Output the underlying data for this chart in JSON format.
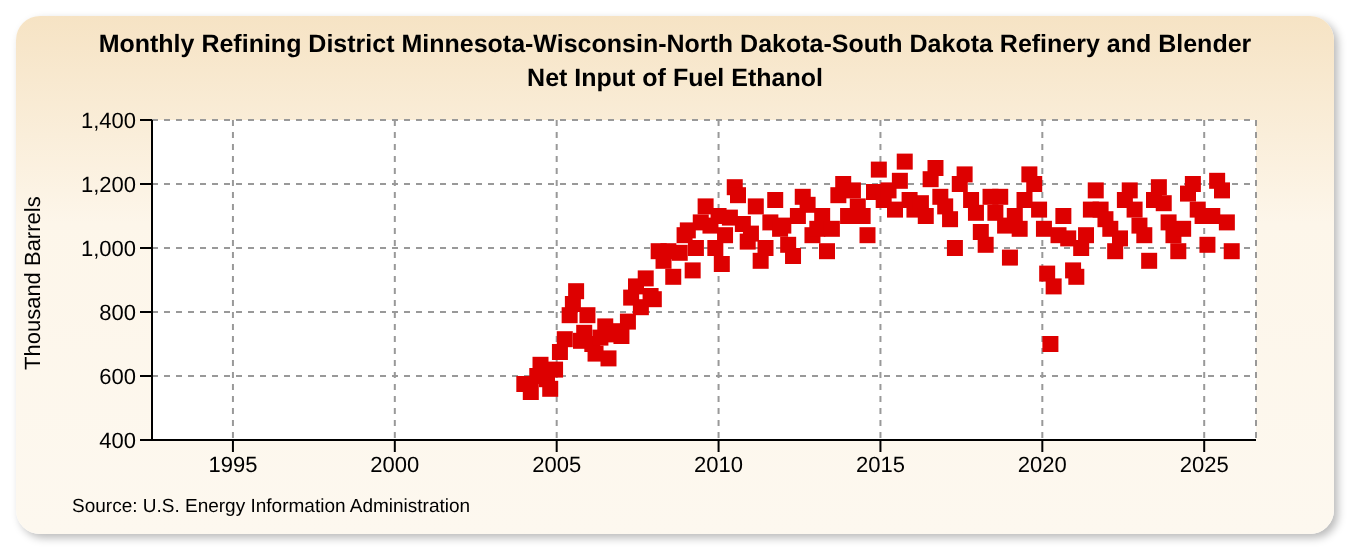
{
  "chart_data": {
    "type": "scatter",
    "title": "Monthly Refining District Minnesota-Wisconsin-North Dakota-South Dakota Refinery and Blender Net Input of Fuel Ethanol",
    "ylabel": "Thousand Barrels",
    "annotations": [
      "Source: U.S. Energy Information Administration"
    ],
    "x": [
      2004.0,
      2004.2,
      2004.4,
      2004.5,
      2004.7,
      2004.8,
      2004.95,
      2005.1,
      2005.25,
      2005.4,
      2005.5,
      2005.6,
      2005.75,
      2005.85,
      2005.95,
      2006.1,
      2006.2,
      2006.35,
      2006.5,
      2006.6,
      2006.75,
      2006.9,
      2007.0,
      2007.2,
      2007.3,
      2007.45,
      2007.6,
      2007.75,
      2007.9,
      2008.0,
      2008.15,
      2008.3,
      2008.45,
      2008.6,
      2008.8,
      2008.95,
      2009.05,
      2009.2,
      2009.3,
      2009.45,
      2009.6,
      2009.75,
      2009.9,
      2010.0,
      2010.1,
      2010.2,
      2010.35,
      2010.5,
      2010.6,
      2010.75,
      2010.9,
      2011.0,
      2011.15,
      2011.3,
      2011.45,
      2011.6,
      2011.75,
      2011.9,
      2012.0,
      2012.15,
      2012.3,
      2012.45,
      2012.6,
      2012.75,
      2012.9,
      2013.05,
      2013.2,
      2013.35,
      2013.5,
      2013.7,
      2013.85,
      2014.0,
      2014.15,
      2014.3,
      2014.45,
      2014.6,
      2014.8,
      2014.95,
      2015.1,
      2015.25,
      2015.45,
      2015.6,
      2015.75,
      2015.9,
      2016.05,
      2016.25,
      2016.4,
      2016.55,
      2016.7,
      2016.85,
      2017.0,
      2017.15,
      2017.3,
      2017.45,
      2017.6,
      2017.8,
      2017.95,
      2018.1,
      2018.25,
      2018.4,
      2018.55,
      2018.7,
      2018.85,
      2019.0,
      2019.15,
      2019.3,
      2019.45,
      2019.6,
      2019.75,
      2019.9,
      2020.05,
      2020.15,
      2020.25,
      2020.35,
      2020.5,
      2020.65,
      2020.8,
      2020.95,
      2021.05,
      2021.2,
      2021.35,
      2021.5,
      2021.65,
      2021.8,
      2021.95,
      2022.1,
      2022.25,
      2022.4,
      2022.55,
      2022.7,
      2022.85,
      2023.0,
      2023.15,
      2023.3,
      2023.45,
      2023.6,
      2023.75,
      2023.9,
      2024.05,
      2024.2,
      2024.35,
      2024.5,
      2024.65,
      2024.8,
      2024.95,
      2025.1,
      2025.25,
      2025.4,
      2025.55,
      2025.7,
      2025.85
    ],
    "series": [
      {
        "color": "#dd0000",
        "values": [
          575,
          550,
          600,
          635,
          590,
          560,
          620,
          675,
          715,
          790,
          825,
          865,
          710,
          735,
          790,
          700,
          670,
          720,
          755,
          655,
          730,
          740,
          725,
          770,
          845,
          880,
          815,
          905,
          850,
          840,
          990,
          960,
          990,
          910,
          985,
          1040,
          1055,
          930,
          1000,
          1080,
          1130,
          1070,
          1000,
          1100,
          950,
          1040,
          1095,
          1190,
          1165,
          1075,
          1020,
          1045,
          1130,
          960,
          1000,
          1080,
          1150,
          1060,
          1070,
          1010,
          975,
          1100,
          1160,
          1135,
          1040,
          1060,
          1100,
          990,
          1060,
          1165,
          1200,
          1100,
          1180,
          1130,
          1100,
          1040,
          1175,
          1245,
          1150,
          1180,
          1120,
          1210,
          1270,
          1150,
          1120,
          1140,
          1100,
          1215,
          1250,
          1160,
          1130,
          1090,
          1000,
          1200,
          1230,
          1150,
          1110,
          1050,
          1010,
          1160,
          1110,
          1160,
          1070,
          970,
          1100,
          1060,
          1150,
          1230,
          1200,
          1120,
          1060,
          920,
          700,
          880,
          1040,
          1100,
          1030,
          930,
          910,
          1000,
          1040,
          1120,
          1180,
          1120,
          1090,
          1060,
          990,
          1030,
          1150,
          1180,
          1120,
          1070,
          1040,
          960,
          1150,
          1190,
          1140,
          1080,
          1040,
          990,
          1060,
          1170,
          1200,
          1120,
          1100,
          1010,
          1100,
          1210,
          1180,
          1080,
          990
        ]
      }
    ],
    "xlim": [
      1992.5,
      2026.6
    ],
    "xticks": [
      1995,
      2000,
      2005,
      2010,
      2015,
      2020,
      2025
    ],
    "ylim": [
      400,
      1400
    ],
    "yticks": [
      {
        "value": 400,
        "label": "400"
      },
      {
        "value": 600,
        "label": "600"
      },
      {
        "value": 800,
        "label": "800"
      },
      {
        "value": 1000,
        "label": "1,000"
      },
      {
        "value": 1200,
        "label": "1,200"
      },
      {
        "value": 1400,
        "label": "1,400"
      }
    ],
    "grid": true,
    "marker": "square"
  }
}
